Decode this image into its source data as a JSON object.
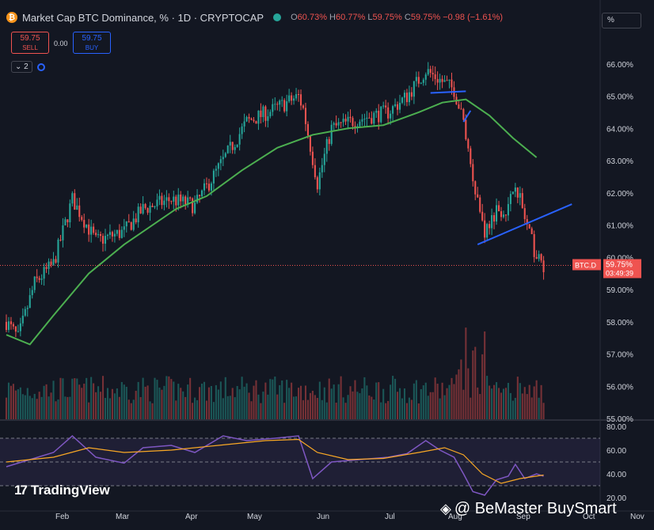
{
  "header": {
    "logo_glyph": "₿",
    "title": "Market Cap BTC Dominance, % · 1D · CRYPTOCAP",
    "ohlc": [
      {
        "label": "O",
        "value": "60.73%"
      },
      {
        "label": "H",
        "value": "60.77%"
      },
      {
        "label": "L",
        "value": "59.75%"
      },
      {
        "label": "C",
        "value": "59.75%"
      }
    ],
    "change": "−0.98 (−1.61%)",
    "scale_box": "%"
  },
  "trade": {
    "sell_value": "59.75",
    "sell_label": "SELL",
    "spread": "0.00",
    "buy_value": "59.75",
    "buy_label": "BUY"
  },
  "indicators_count": "2",
  "colors": {
    "up": "#26a69a",
    "down": "#ef5350",
    "ma": "#4caf50",
    "trendline": "#2962ff",
    "rsi": "#7e57c2",
    "rsi_ma": "#f9a825"
  },
  "chart_data": {
    "type": "candlestick",
    "y_axis": {
      "ticks": [
        "66.00%",
        "65.00%",
        "64.00%",
        "63.00%",
        "62.00%",
        "61.00%",
        "60.00%",
        "59.00%",
        "58.00%",
        "57.00%",
        "56.00%",
        "55.00%"
      ],
      "range": [
        54.98,
        67.0
      ]
    },
    "x_axis": {
      "ticks": [
        "Feb",
        "Mar",
        "Apr",
        "May",
        "Jun",
        "Jul",
        "Aug",
        "Sep",
        "Oct",
        "Nov"
      ]
    },
    "price_label": {
      "symbol": "BTC.D",
      "value": "59.75%",
      "countdown": "03:49:39",
      "price": 59.75
    },
    "key_levels": [
      {
        "x": 0,
        "y": 58.0
      },
      {
        "x": 5,
        "y": 57.5
      },
      {
        "x": 12,
        "y": 59.2
      },
      {
        "x": 20,
        "y": 59.8
      },
      {
        "x": 28,
        "y": 61.8
      },
      {
        "x": 38,
        "y": 60.5
      },
      {
        "x": 50,
        "y": 60.8
      },
      {
        "x": 58,
        "y": 61.5
      },
      {
        "x": 70,
        "y": 61.8
      },
      {
        "x": 80,
        "y": 61.6
      },
      {
        "x": 92,
        "y": 63.0
      },
      {
        "x": 102,
        "y": 64.2
      },
      {
        "x": 114,
        "y": 64.6
      },
      {
        "x": 124,
        "y": 65.0
      },
      {
        "x": 126,
        "y": 64.6
      },
      {
        "x": 132,
        "y": 62.3
      },
      {
        "x": 138,
        "y": 64.0
      },
      {
        "x": 150,
        "y": 64.3
      },
      {
        "x": 162,
        "y": 64.5
      },
      {
        "x": 170,
        "y": 65.0
      },
      {
        "x": 178,
        "y": 65.8
      },
      {
        "x": 184,
        "y": 65.5
      },
      {
        "x": 190,
        "y": 65.2
      },
      {
        "x": 194,
        "y": 64.2
      },
      {
        "x": 198,
        "y": 62.5
      },
      {
        "x": 203,
        "y": 60.8
      },
      {
        "x": 208,
        "y": 61.5
      },
      {
        "x": 213,
        "y": 61.5
      },
      {
        "x": 216,
        "y": 62.4
      },
      {
        "x": 220,
        "y": 61.2
      },
      {
        "x": 225,
        "y": 60.0
      },
      {
        "x": 228,
        "y": 59.75
      }
    ],
    "moving_average": [
      {
        "x": 0,
        "y": 57.6
      },
      {
        "x": 10,
        "y": 57.3
      },
      {
        "x": 20,
        "y": 58.2
      },
      {
        "x": 35,
        "y": 59.5
      },
      {
        "x": 50,
        "y": 60.4
      },
      {
        "x": 60,
        "y": 60.9
      },
      {
        "x": 72,
        "y": 61.5
      },
      {
        "x": 85,
        "y": 61.9
      },
      {
        "x": 100,
        "y": 62.7
      },
      {
        "x": 115,
        "y": 63.4
      },
      {
        "x": 130,
        "y": 63.8
      },
      {
        "x": 145,
        "y": 64.0
      },
      {
        "x": 160,
        "y": 64.1
      },
      {
        "x": 175,
        "y": 64.5
      },
      {
        "x": 185,
        "y": 64.8
      },
      {
        "x": 195,
        "y": 64.9
      },
      {
        "x": 205,
        "y": 64.4
      },
      {
        "x": 215,
        "y": 63.7
      },
      {
        "x": 225,
        "y": 63.1
      }
    ],
    "trendlines": [
      {
        "x1": 180,
        "y1": 65.1,
        "x2": 195,
        "y2": 65.15
      },
      {
        "x1": 194,
        "y1": 64.2,
        "x2": 197,
        "y2": 64.55
      },
      {
        "x1": 200,
        "y1": 60.4,
        "x2": 240,
        "y2": 61.65
      }
    ],
    "rsi": {
      "ticks": [
        "80.00",
        "60.00",
        "40.00",
        "20.00"
      ],
      "range": [
        14,
        82
      ],
      "bands": [
        70,
        50,
        30
      ],
      "values": [
        {
          "x": 0,
          "y": 46
        },
        {
          "x": 10,
          "y": 52
        },
        {
          "x": 20,
          "y": 58
        },
        {
          "x": 28,
          "y": 72
        },
        {
          "x": 38,
          "y": 54
        },
        {
          "x": 50,
          "y": 49
        },
        {
          "x": 58,
          "y": 62
        },
        {
          "x": 70,
          "y": 64
        },
        {
          "x": 80,
          "y": 58
        },
        {
          "x": 92,
          "y": 72
        },
        {
          "x": 102,
          "y": 68
        },
        {
          "x": 114,
          "y": 70
        },
        {
          "x": 124,
          "y": 72
        },
        {
          "x": 126,
          "y": 60
        },
        {
          "x": 130,
          "y": 36
        },
        {
          "x": 138,
          "y": 50
        },
        {
          "x": 150,
          "y": 52
        },
        {
          "x": 162,
          "y": 54
        },
        {
          "x": 170,
          "y": 57
        },
        {
          "x": 178,
          "y": 68
        },
        {
          "x": 184,
          "y": 60
        },
        {
          "x": 190,
          "y": 54
        },
        {
          "x": 194,
          "y": 40
        },
        {
          "x": 198,
          "y": 25
        },
        {
          "x": 203,
          "y": 22
        },
        {
          "x": 208,
          "y": 35
        },
        {
          "x": 213,
          "y": 38
        },
        {
          "x": 216,
          "y": 48
        },
        {
          "x": 220,
          "y": 36
        },
        {
          "x": 225,
          "y": 40
        },
        {
          "x": 228,
          "y": 38
        }
      ],
      "ma": [
        {
          "x": 0,
          "y": 50
        },
        {
          "x": 20,
          "y": 54
        },
        {
          "x": 35,
          "y": 62
        },
        {
          "x": 50,
          "y": 58
        },
        {
          "x": 70,
          "y": 60
        },
        {
          "x": 90,
          "y": 64
        },
        {
          "x": 110,
          "y": 68
        },
        {
          "x": 124,
          "y": 69
        },
        {
          "x": 132,
          "y": 58
        },
        {
          "x": 145,
          "y": 52
        },
        {
          "x": 160,
          "y": 53
        },
        {
          "x": 175,
          "y": 58
        },
        {
          "x": 186,
          "y": 62
        },
        {
          "x": 194,
          "y": 56
        },
        {
          "x": 202,
          "y": 40
        },
        {
          "x": 210,
          "y": 32
        },
        {
          "x": 218,
          "y": 36
        },
        {
          "x": 228,
          "y": 39
        }
      ]
    }
  },
  "branding": {
    "tradingview": "TradingView",
    "tv_glyph": "17"
  },
  "watermark": {
    "icon": "◈",
    "text": "@ BeMaster BuySmart"
  }
}
